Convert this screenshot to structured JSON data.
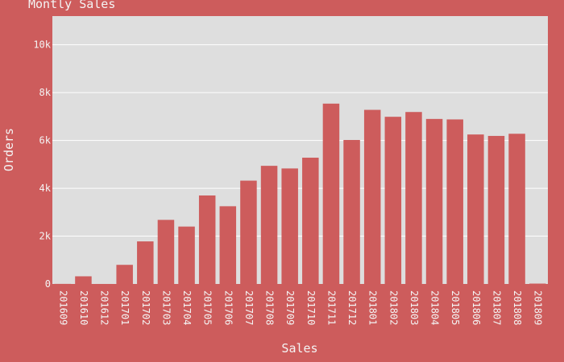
{
  "chart_data": {
    "type": "bar",
    "title": "Montly Sales",
    "xlabel": "Sales",
    "ylabel": "Orders",
    "categories": [
      "201609",
      "201610",
      "201612",
      "201701",
      "201702",
      "201703",
      "201704",
      "201705",
      "201706",
      "201707",
      "201708",
      "201709",
      "201710",
      "201711",
      "201712",
      "201801",
      "201802",
      "201803",
      "201804",
      "201805",
      "201806",
      "201807",
      "201808",
      "201809"
    ],
    "values": [
      4,
      320,
      1,
      800,
      1780,
      2680,
      2400,
      3700,
      3250,
      4320,
      4940,
      4830,
      5280,
      7540,
      6020,
      7280,
      6990,
      7190,
      6900,
      6880,
      6250,
      6190,
      6280,
      16
    ],
    "ylim": [
      0,
      11200
    ],
    "yticks": [
      0,
      2000,
      4000,
      6000,
      8000,
      10000
    ],
    "ytick_labels": [
      "0",
      "2k",
      "4k",
      "6k",
      "8k",
      "10k"
    ],
    "grid": true,
    "colors": {
      "background": "#cd5c5c",
      "plot_background": "#dedede",
      "bar": "#cd5c5c",
      "grid": "#ffffff",
      "text": "#f4f4f4"
    }
  }
}
